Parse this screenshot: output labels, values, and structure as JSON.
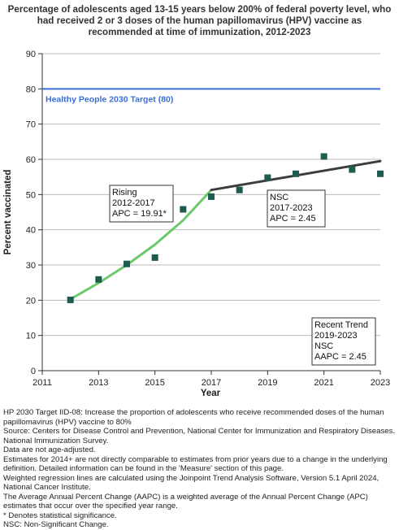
{
  "title": "Percentage of adolescents aged 13-15 years below 200% of federal poverty level, who had received 2 or 3 doses of the human papillomavirus (HPV) vaccine as recommended at time of immunization, 2012-2023",
  "chart_data": {
    "type": "scatter",
    "xlabel": "Year",
    "ylabel": "Percent vaccinated",
    "xlim": [
      2011,
      2023
    ],
    "ylim": [
      0,
      90
    ],
    "xticks": [
      "2011",
      "2013",
      "2015",
      "2017",
      "2019",
      "2021",
      "2023"
    ],
    "yticks": [
      "0",
      "10",
      "20",
      "30",
      "40",
      "50",
      "60",
      "70",
      "80",
      "90"
    ],
    "grid": "horizontal",
    "colors": {
      "points": "#1f5c50",
      "rising_trend": "#6cc96a",
      "nsc_trend": "#3d3d3d",
      "target_line": "#3a6fd8",
      "grid": "#bbbbbb"
    },
    "points": [
      {
        "x": 2012,
        "y": 20.1
      },
      {
        "x": 2013,
        "y": 25.9
      },
      {
        "x": 2014,
        "y": 30.3
      },
      {
        "x": 2015,
        "y": 32.1
      },
      {
        "x": 2016,
        "y": 45.8
      },
      {
        "x": 2017,
        "y": 49.4
      },
      {
        "x": 2018,
        "y": 51.3
      },
      {
        "x": 2019,
        "y": 54.8
      },
      {
        "x": 2020,
        "y": 55.9
      },
      {
        "x": 2021,
        "y": 60.8
      },
      {
        "x": 2022,
        "y": 57.1
      },
      {
        "x": 2023,
        "y": 55.9
      }
    ],
    "trend_segments": [
      {
        "name": "Rising 2012-2017",
        "x": [
          2012,
          2013,
          2014,
          2015,
          2016,
          2017
        ],
        "y": [
          20.3,
          24.9,
          30.0,
          35.8,
          42.7,
          51.3
        ]
      },
      {
        "name": "NSC 2017-2023",
        "x": [
          2017,
          2023
        ],
        "y": [
          51.3,
          59.5
        ]
      }
    ],
    "target": {
      "value": 80,
      "label": "Healthy People 2030 Target (80)"
    },
    "annotations": [
      {
        "lines": [
          "Rising",
          "2012-2017",
          "APC = 19.91*"
        ]
      },
      {
        "lines": [
          "NSC",
          "2017-2023",
          "APC =  2.45"
        ]
      },
      {
        "lines": [
          "Recent Trend",
          "2019-2023",
          "NSC",
          "AAPC =  2.45"
        ]
      }
    ]
  },
  "footnotes": [
    "HP 2030 Target IID-08:  Increase the proportion of adolescents who receive recommended doses of the human papillomavirus (HPV) vaccine to 80%",
    "Source: Centers for Disease Control and Prevention, National Center for Immunization and Respiratory Diseases. National Immunization Survey.",
    "Data are not age-adjusted.",
    "Estimates for 2014+ are not directly comparable to estimates from prior years due to a change in the underlying definition. Detailed information can be found in the 'Measure' section of this page.",
    "Weighted regression lines are calculated using the Joinpoint Trend Analysis Software, Version 5.1 April 2024, National Cancer Institute.",
    "The Average Annual Percent Change (AAPC) is a weighted average of the Annual Percent Change (APC) estimates that occur over the specified year range.",
    "* Denotes statistical significance.",
    "NSC: Non-Significant Change."
  ]
}
